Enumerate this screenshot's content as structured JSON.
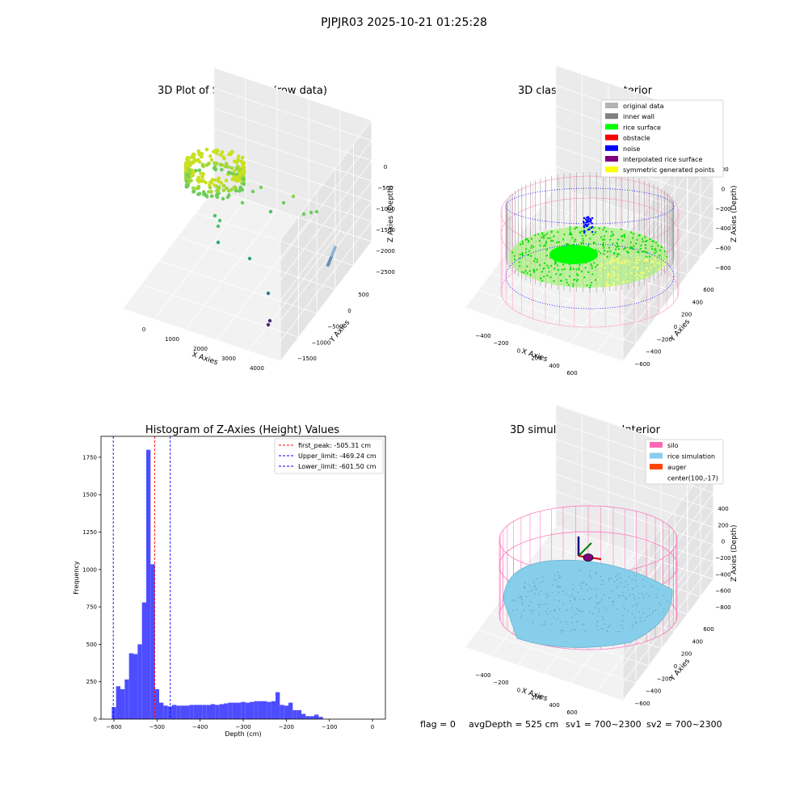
{
  "figure": {
    "suptitle": "PJPJR03 2025-10-21 01:25:28",
    "footer": {
      "flag": "flag = 0",
      "avg_depth": "avgDepth = 525 cm",
      "sv1": "sv1 = 700~2300",
      "sv2": "sv2 = 700~2300"
    }
  },
  "chart_data": [
    {
      "id": "raw",
      "type": "scatter",
      "projection": "3d",
      "title": "3D Plot of Silo Interior(row data)",
      "xlabel": "X Axies",
      "ylabel": "Y Axies",
      "zlabel": "Z Axies (Depth)",
      "x_ticks": [
        "0",
        "1000",
        "2000",
        "3000",
        "4000"
      ],
      "y_ticks": [
        "500",
        "0",
        "−500",
        "−1000",
        "−1500"
      ],
      "z_ticks": [
        "0",
        "−500",
        "−1000",
        "−1500",
        "−2000",
        "−2500"
      ],
      "colormap": "viridis",
      "points_sample": [
        {
          "x": 2000,
          "y": 0,
          "z": -1100
        },
        {
          "x": 2500,
          "y": 100,
          "z": -950
        },
        {
          "x": 3200,
          "y": 300,
          "z": -1250
        },
        {
          "x": 1500,
          "y": -300,
          "z": -1800
        },
        {
          "x": 2800,
          "y": -800,
          "z": -2300
        },
        {
          "x": 3500,
          "y": -1200,
          "z": -2600
        }
      ]
    },
    {
      "id": "classify",
      "type": "scatter",
      "projection": "3d",
      "title": "3D classify of Silo Interior",
      "xlabel": "X Axies",
      "ylabel": "Y Axies",
      "zlabel": "Z Axies (Depth)",
      "x_ticks": [
        "−400",
        "−200",
        "0",
        "200",
        "400",
        "600"
      ],
      "y_ticks": [
        "600",
        "400",
        "200",
        "0",
        "−200",
        "−400",
        "−600"
      ],
      "z_ticks": [
        "200",
        "0",
        "−200",
        "−400",
        "−600",
        "−800"
      ],
      "legend": [
        {
          "label": "original data",
          "color": "#b3b3b3"
        },
        {
          "label": "inner wall",
          "color": "#808080"
        },
        {
          "label": "rice surface",
          "color": "#00ff00"
        },
        {
          "label": "obstacle",
          "color": "#ff0000"
        },
        {
          "label": "noise",
          "color": "#0000ff"
        },
        {
          "label": "interpolated rice surface",
          "color": "#800080"
        },
        {
          "label": "symmetric generated points",
          "color": "#ffff00"
        }
      ],
      "legend_loc": "upper right"
    },
    {
      "id": "hist",
      "type": "bar",
      "title": "Histogram of Z-Axies (Height) Values",
      "xlabel": "Depth (cm)",
      "ylabel": "Frequency",
      "xlim": [
        -630,
        30
      ],
      "ylim": [
        0,
        1890
      ],
      "x_ticks": [
        -600,
        -500,
        -400,
        -300,
        -200,
        -100,
        0
      ],
      "y_ticks": [
        0,
        250,
        500,
        750,
        1000,
        1250,
        1500,
        1750
      ],
      "bar_color": "#4d4dff",
      "bin_start": -605,
      "bin_width": 10,
      "values": [
        80,
        220,
        200,
        265,
        440,
        435,
        500,
        780,
        1800,
        1035,
        200,
        110,
        90,
        85,
        95,
        90,
        90,
        90,
        95,
        95,
        95,
        95,
        95,
        100,
        95,
        100,
        105,
        110,
        110,
        110,
        115,
        110,
        115,
        120,
        120,
        120,
        115,
        120,
        180,
        95,
        90,
        110,
        60,
        60,
        35,
        20,
        20,
        30,
        15
      ],
      "vlines": [
        {
          "label": "first_peak: -505.31 cm",
          "x": -505.31,
          "color": "#ff0000"
        },
        {
          "label": "Upper_limit: -469.24 cm",
          "x": -469.24,
          "color": "#0000ff"
        },
        {
          "label": "Lower_limit: -601.50 cm",
          "x": -601.5,
          "color": "#0000ff"
        }
      ],
      "legend_loc": "upper right"
    },
    {
      "id": "sim",
      "type": "scatter",
      "projection": "3d",
      "title": "3D simulation of Silo Interior",
      "xlabel": "X Axies",
      "ylabel": "Y Axies",
      "zlabel": "Z Axies (Depth)",
      "x_ticks": [
        "−400",
        "−200",
        "0",
        "200",
        "400",
        "600"
      ],
      "y_ticks": [
        "600",
        "400",
        "200",
        "0",
        "−200",
        "−400",
        "−600"
      ],
      "z_ticks": [
        "400",
        "200",
        "0",
        "−200",
        "−400",
        "−600",
        "−800"
      ],
      "legend": [
        {
          "label": "silo",
          "color": "#ff69b4"
        },
        {
          "label": "rice simulation",
          "color": "#87ceeb"
        },
        {
          "label": "auger",
          "color": "#ff4500"
        },
        {
          "label": "center(100,-17)",
          "color": ""
        }
      ],
      "legend_loc": "upper right"
    }
  ]
}
